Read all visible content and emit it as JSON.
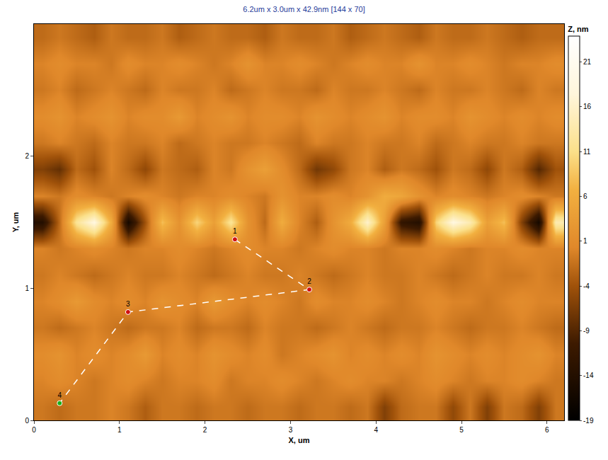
{
  "chart_data": {
    "type": "heatmap",
    "title": "6.2um x 3.0um x 42.9nm [144 x 70]",
    "x_label": "X, um",
    "y_label": "Y, um",
    "colorbar_title": "Z, nm",
    "xlim": [
      0,
      6.2
    ],
    "ylim": [
      0,
      3.0
    ],
    "xticks": [
      0,
      1,
      2,
      3,
      4,
      5,
      6
    ],
    "yticks": [
      0,
      1,
      2
    ],
    "zlim": [
      -19,
      23.9
    ],
    "zticks": [
      -19,
      -14,
      -9,
      -4,
      1,
      6,
      11,
      16,
      21
    ],
    "x": [
      0.1,
      0.3,
      0.5,
      0.7,
      0.9,
      1.1,
      1.3,
      1.5,
      1.7,
      1.9,
      2.1,
      2.3,
      2.5,
      2.7,
      2.9,
      3.1,
      3.3,
      3.5,
      3.7,
      3.9,
      4.1,
      4.3,
      4.5,
      4.7,
      4.9,
      5.1,
      5.3,
      5.5,
      5.7,
      5.9,
      6.1
    ],
    "y": [
      0.1,
      0.3,
      0.5,
      0.7,
      0.9,
      1.1,
      1.3,
      1.5,
      1.7,
      1.9,
      2.1,
      2.3,
      2.5,
      2.7,
      2.9
    ],
    "z": [
      [
        -1,
        -2,
        -1,
        -1,
        0,
        -1,
        -3,
        -1,
        -1,
        -2,
        -1,
        -1,
        -2,
        -1,
        -1,
        -2,
        -1,
        -1,
        -2,
        -1,
        -6,
        -2,
        -1,
        -1,
        -5,
        -1,
        -6,
        -1,
        -2,
        -6,
        -1
      ],
      [
        0,
        1,
        0,
        -1,
        0,
        1,
        0,
        -1,
        0,
        0,
        1,
        -1,
        0,
        0,
        1,
        0,
        -1,
        0,
        1,
        0,
        0,
        -1,
        0,
        1,
        0,
        -1,
        0,
        0,
        1,
        0,
        -1
      ],
      [
        1,
        2,
        0,
        1,
        0,
        1,
        3,
        0,
        1,
        0,
        2,
        1,
        0,
        1,
        -1,
        0,
        1,
        2,
        0,
        1,
        0,
        1,
        0,
        2,
        1,
        0,
        1,
        0,
        1,
        2,
        0
      ],
      [
        -1,
        -2,
        -1,
        0,
        -1,
        -2,
        -1,
        -1,
        0,
        -2,
        -1,
        -1,
        -2,
        0,
        -1,
        -1,
        -2,
        -1,
        0,
        -1,
        -2,
        -1,
        -1,
        0,
        -1,
        -2,
        -1,
        -1,
        0,
        -1,
        -2
      ],
      [
        0,
        1,
        3,
        1,
        0,
        1,
        0,
        2,
        1,
        0,
        3,
        1,
        0,
        1,
        0,
        -1,
        1,
        0,
        0,
        1,
        0,
        -1,
        0,
        1,
        0,
        0,
        -1,
        0,
        1,
        0,
        0
      ],
      [
        -1,
        0,
        -1,
        -2,
        -1,
        0,
        -1,
        -1,
        0,
        -1,
        -2,
        -1,
        0,
        -1,
        -1,
        0,
        -1,
        -2,
        -1,
        0,
        -1,
        -1,
        0,
        -1,
        -2,
        -1,
        0,
        -1,
        -1,
        0,
        -1
      ],
      [
        0,
        -1,
        0,
        1,
        0,
        -1,
        0,
        0,
        1,
        0,
        -1,
        0,
        1,
        0,
        0,
        -1,
        0,
        1,
        0,
        0,
        -1,
        0,
        0,
        1,
        0,
        -1,
        0,
        0,
        1,
        0,
        0
      ],
      [
        -14,
        -2,
        12,
        18,
        6,
        -16,
        -4,
        8,
        2,
        10,
        4,
        12,
        2,
        -2,
        6,
        0,
        -3,
        2,
        6,
        16,
        4,
        -12,
        -14,
        10,
        18,
        14,
        4,
        8,
        -6,
        -16,
        14
      ],
      [
        0,
        -1,
        1,
        0,
        -1,
        0,
        1,
        0,
        -1,
        0,
        0,
        1,
        0,
        -1,
        2,
        0,
        0,
        1,
        0,
        2,
        6,
        5,
        2,
        0,
        1,
        0,
        -1,
        0,
        1,
        0,
        -1
      ],
      [
        -6,
        -8,
        -2,
        -4,
        0,
        -2,
        -5,
        -1,
        -2,
        -3,
        0,
        -1,
        2,
        4,
        1,
        -2,
        -7,
        -5,
        -1,
        0,
        -3,
        -1,
        -2,
        -4,
        -1,
        -2,
        -5,
        -1,
        -3,
        -9,
        -4
      ],
      [
        -1,
        0,
        -1,
        -2,
        0,
        -1,
        -1,
        0,
        -2,
        -1,
        0,
        -1,
        -1,
        0,
        -1,
        -2,
        0,
        -1,
        -1,
        0,
        -1,
        -1,
        0,
        -2,
        -1,
        0,
        -1,
        -1,
        0,
        -1,
        -1
      ],
      [
        1,
        2,
        0,
        1,
        2,
        0,
        1,
        1,
        3,
        0,
        1,
        2,
        0,
        1,
        1,
        0,
        2,
        1,
        0,
        1,
        2,
        0,
        1,
        1,
        0,
        2,
        1,
        0,
        1,
        0,
        1
      ],
      [
        -1,
        0,
        -2,
        -1,
        0,
        -1,
        -2,
        0,
        -1,
        -1,
        0,
        -2,
        -1,
        0,
        -1,
        -1,
        -2,
        0,
        -1,
        -1,
        0,
        -1,
        -2,
        0,
        -1,
        -1,
        0,
        -1,
        -2,
        0,
        -1
      ],
      [
        0,
        1,
        0,
        0,
        -1,
        1,
        0,
        0,
        1,
        0,
        -1,
        0,
        2,
        0,
        0,
        1,
        0,
        -1,
        0,
        1,
        0,
        0,
        2,
        0,
        0,
        1,
        0,
        -1,
        0,
        0,
        1
      ],
      [
        -2,
        -1,
        -2,
        -3,
        -1,
        -2,
        -2,
        -1,
        -3,
        -2,
        -1,
        -2,
        -2,
        -3,
        -1,
        -2,
        -2,
        -1,
        -3,
        -2,
        -1,
        -2,
        -3,
        -1,
        -2,
        -2,
        -1,
        -2,
        -3,
        -2,
        -2
      ]
    ],
    "path": {
      "x": [
        2.35,
        3.22,
        1.1,
        0.3
      ],
      "y": [
        1.37,
        0.99,
        0.82,
        0.13
      ],
      "labels": [
        "1",
        "2",
        "3",
        "4"
      ],
      "colors": [
        "#d01010",
        "#d01010",
        "#d01010",
        "#18b018"
      ],
      "line_style": "dashed"
    }
  }
}
